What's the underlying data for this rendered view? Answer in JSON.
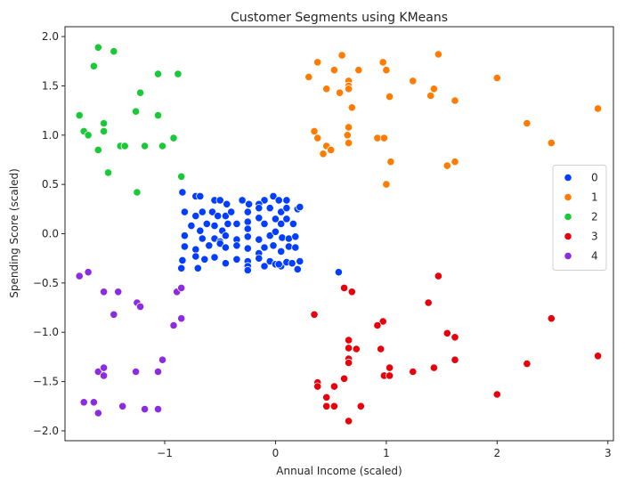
{
  "chart_data": {
    "type": "scatter",
    "title": "Customer Segments using KMeans",
    "xlabel": "Annual Income (scaled)",
    "ylabel": "Spending Score (scaled)",
    "xlim": [
      -1.9,
      3.05
    ],
    "ylim": [
      -2.1,
      2.1
    ],
    "xticks": [
      -1,
      0,
      1,
      2,
      3
    ],
    "xtick_labels": [
      "−1",
      "0",
      "1",
      "2",
      "3"
    ],
    "yticks": [
      -2.0,
      -1.5,
      -1.0,
      -0.5,
      0.0,
      0.5,
      1.0,
      1.5,
      2.0
    ],
    "ytick_labels": [
      "−2.0",
      "−1.5",
      "−1.0",
      "−0.5",
      "0.0",
      "0.5",
      "1.0",
      "1.5",
      "2.0"
    ],
    "grid": false,
    "legend_position": "center-right",
    "series": [
      {
        "name": "0",
        "color": "#023eff",
        "points": [
          [
            -0.84,
            0.42
          ],
          [
            -0.72,
            0.38
          ],
          [
            -0.68,
            0.38
          ],
          [
            -0.55,
            0.34
          ],
          [
            -0.5,
            0.34
          ],
          [
            -0.44,
            0.3
          ],
          [
            -0.3,
            0.34
          ],
          [
            -0.24,
            0.3
          ],
          [
            -0.1,
            0.34
          ],
          [
            -0.02,
            0.38
          ],
          [
            0.03,
            0.34
          ],
          [
            0.1,
            0.34
          ],
          [
            -0.15,
            0.3
          ],
          [
            -0.82,
            0.22
          ],
          [
            -0.72,
            0.18
          ],
          [
            -0.66,
            0.22
          ],
          [
            -0.57,
            0.22
          ],
          [
            -0.52,
            0.18
          ],
          [
            -0.45,
            0.18
          ],
          [
            -0.4,
            0.22
          ],
          [
            -0.25,
            0.22
          ],
          [
            -0.15,
            0.26
          ],
          [
            -0.05,
            0.26
          ],
          [
            0.05,
            0.22
          ],
          [
            0.1,
            0.26
          ],
          [
            0.2,
            0.25
          ],
          [
            0.22,
            0.27
          ],
          [
            -0.76,
            0.08
          ],
          [
            -0.68,
            0.03
          ],
          [
            -0.62,
            0.1
          ],
          [
            -0.55,
            0.08
          ],
          [
            -0.48,
            0.03
          ],
          [
            -0.43,
            0.1
          ],
          [
            -0.25,
            0.12
          ],
          [
            -0.25,
            0.05
          ],
          [
            -0.15,
            0.16
          ],
          [
            -0.1,
            0.1
          ],
          [
            0.0,
            0.15
          ],
          [
            0.05,
            0.1
          ],
          [
            0.1,
            0.15
          ],
          [
            0.16,
            0.1
          ],
          [
            -0.35,
            0.1
          ],
          [
            -0.82,
            -0.02
          ],
          [
            -0.66,
            -0.05
          ],
          [
            -0.55,
            -0.05
          ],
          [
            -0.5,
            -0.08
          ],
          [
            -0.45,
            -0.02
          ],
          [
            -0.25,
            -0.03
          ],
          [
            -0.15,
            -0.06
          ],
          [
            -0.05,
            -0.02
          ],
          [
            0.0,
            0.02
          ],
          [
            0.06,
            -0.04
          ],
          [
            0.12,
            -0.05
          ],
          [
            0.18,
            -0.03
          ],
          [
            -0.35,
            -0.06
          ],
          [
            -0.82,
            -0.13
          ],
          [
            -0.72,
            -0.16
          ],
          [
            -0.6,
            -0.12
          ],
          [
            -0.5,
            -0.1
          ],
          [
            -0.45,
            -0.14
          ],
          [
            -0.25,
            -0.15
          ],
          [
            -0.15,
            -0.2
          ],
          [
            -0.1,
            -0.14
          ],
          [
            -0.02,
            -0.12
          ],
          [
            0.05,
            -0.18
          ],
          [
            0.12,
            -0.13
          ],
          [
            0.18,
            -0.14
          ],
          [
            -0.35,
            -0.12
          ],
          [
            -0.84,
            -0.27
          ],
          [
            -0.72,
            -0.23
          ],
          [
            -0.64,
            -0.26
          ],
          [
            -0.55,
            -0.24
          ],
          [
            -0.45,
            -0.3
          ],
          [
            -0.25,
            -0.28
          ],
          [
            -0.25,
            -0.33
          ],
          [
            -0.15,
            -0.25
          ],
          [
            -0.05,
            -0.28
          ],
          [
            0.0,
            -0.31
          ],
          [
            0.05,
            -0.33
          ],
          [
            0.1,
            -0.29
          ],
          [
            0.15,
            -0.3
          ],
          [
            0.22,
            -0.28
          ],
          [
            -0.35,
            -0.26
          ],
          [
            -0.85,
            -0.35
          ],
          [
            -0.7,
            -0.35
          ],
          [
            -0.25,
            -0.37
          ],
          [
            -0.1,
            -0.33
          ],
          [
            0.03,
            -0.31
          ],
          [
            0.2,
            -0.36
          ],
          [
            0.57,
            -0.39
          ]
        ]
      },
      {
        "name": "1",
        "color": "#ff7c00",
        "points": [
          [
            0.6,
            1.81
          ],
          [
            0.97,
            1.74
          ],
          [
            1.47,
            1.82
          ],
          [
            0.38,
            1.74
          ],
          [
            0.53,
            1.66
          ],
          [
            0.75,
            1.66
          ],
          [
            0.3,
            1.59
          ],
          [
            0.66,
            1.55
          ],
          [
            0.66,
            1.5
          ],
          [
            0.66,
            1.47
          ],
          [
            0.46,
            1.47
          ],
          [
            0.58,
            1.43
          ],
          [
            1.0,
            1.66
          ],
          [
            1.24,
            1.55
          ],
          [
            1.43,
            1.47
          ],
          [
            1.4,
            1.4
          ],
          [
            1.03,
            1.39
          ],
          [
            1.62,
            1.35
          ],
          [
            0.69,
            1.28
          ],
          [
            2.0,
            1.58
          ],
          [
            2.91,
            1.27
          ],
          [
            0.66,
            1.08
          ],
          [
            0.35,
            1.04
          ],
          [
            0.65,
            1.0
          ],
          [
            0.38,
            0.97
          ],
          [
            0.66,
            0.92
          ],
          [
            0.46,
            0.89
          ],
          [
            0.5,
            0.85
          ],
          [
            0.43,
            0.81
          ],
          [
            0.92,
            0.97
          ],
          [
            0.98,
            0.97
          ],
          [
            1.04,
            0.73
          ],
          [
            1.62,
            0.73
          ],
          [
            1.55,
            0.69
          ],
          [
            2.27,
            1.12
          ],
          [
            2.49,
            0.92
          ],
          [
            1.0,
            0.5
          ]
        ]
      },
      {
        "name": "2",
        "color": "#1ac938",
        "points": [
          [
            -1.6,
            1.89
          ],
          [
            -1.46,
            1.85
          ],
          [
            -1.64,
            1.7
          ],
          [
            -1.06,
            1.62
          ],
          [
            -0.88,
            1.62
          ],
          [
            -1.22,
            1.43
          ],
          [
            -1.26,
            1.24
          ],
          [
            -1.06,
            1.2
          ],
          [
            -1.77,
            1.2
          ],
          [
            -1.55,
            1.12
          ],
          [
            -1.73,
            1.04
          ],
          [
            -1.55,
            1.04
          ],
          [
            -1.69,
            1.0
          ],
          [
            -0.92,
            0.97
          ],
          [
            -1.4,
            0.89
          ],
          [
            -1.36,
            0.89
          ],
          [
            -1.18,
            0.89
          ],
          [
            -1.02,
            0.89
          ],
          [
            -1.6,
            0.85
          ],
          [
            -1.51,
            0.62
          ],
          [
            -0.85,
            0.58
          ],
          [
            -1.25,
            0.42
          ]
        ]
      },
      {
        "name": "3",
        "color": "#e8000b",
        "points": [
          [
            1.47,
            -0.43
          ],
          [
            0.62,
            -0.55
          ],
          [
            0.69,
            -0.59
          ],
          [
            0.35,
            -0.82
          ],
          [
            1.38,
            -0.7
          ],
          [
            0.97,
            -0.89
          ],
          [
            0.92,
            -0.93
          ],
          [
            2.49,
            -0.86
          ],
          [
            1.55,
            -1.01
          ],
          [
            1.62,
            -1.05
          ],
          [
            0.66,
            -1.08
          ],
          [
            0.66,
            -1.16
          ],
          [
            0.73,
            -1.17
          ],
          [
            0.95,
            -1.17
          ],
          [
            0.66,
            -1.27
          ],
          [
            0.66,
            -1.31
          ],
          [
            1.62,
            -1.28
          ],
          [
            2.91,
            -1.24
          ],
          [
            1.03,
            -1.36
          ],
          [
            1.43,
            -1.36
          ],
          [
            1.24,
            -1.4
          ],
          [
            2.27,
            -1.32
          ],
          [
            0.98,
            -1.44
          ],
          [
            1.03,
            -1.44
          ],
          [
            0.38,
            -1.51
          ],
          [
            0.38,
            -1.55
          ],
          [
            0.53,
            -1.55
          ],
          [
            0.62,
            -1.47
          ],
          [
            0.46,
            -1.66
          ],
          [
            0.46,
            -1.75
          ],
          [
            0.53,
            -1.75
          ],
          [
            0.77,
            -1.75
          ],
          [
            2.0,
            -1.63
          ],
          [
            0.66,
            -1.9
          ]
        ]
      },
      {
        "name": "4",
        "color": "#8b2be2",
        "points": [
          [
            -1.77,
            -0.43
          ],
          [
            -1.69,
            -0.39
          ],
          [
            -1.55,
            -0.59
          ],
          [
            -1.42,
            -0.59
          ],
          [
            -1.25,
            -0.7
          ],
          [
            -1.22,
            -0.74
          ],
          [
            -0.89,
            -0.59
          ],
          [
            -0.85,
            -0.55
          ],
          [
            -0.92,
            -0.93
          ],
          [
            -0.85,
            -0.86
          ],
          [
            -1.46,
            -0.82
          ],
          [
            -1.6,
            -1.4
          ],
          [
            -1.55,
            -1.36
          ],
          [
            -1.55,
            -1.44
          ],
          [
            -1.26,
            -1.4
          ],
          [
            -1.06,
            -1.4
          ],
          [
            -1.02,
            -1.28
          ],
          [
            -1.73,
            -1.71
          ],
          [
            -1.64,
            -1.71
          ],
          [
            -1.6,
            -1.82
          ],
          [
            -1.38,
            -1.75
          ],
          [
            -1.18,
            -1.78
          ],
          [
            -1.06,
            -1.78
          ]
        ]
      }
    ]
  }
}
